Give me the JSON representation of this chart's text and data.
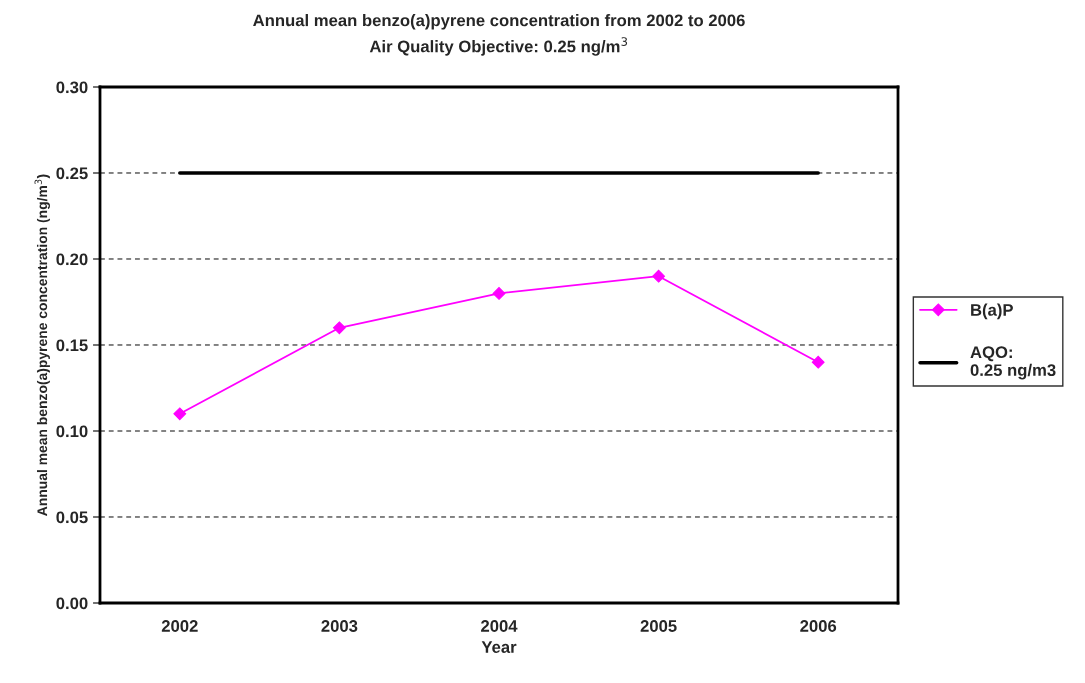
{
  "chart_data": {
    "type": "line",
    "title": "Annual mean benzo(a)pyrene concentration from 2002 to 2006\nAir Quality Objective: 0.25 ng/m$^{3}$",
    "xlabel": "Year",
    "ylabel": "Annual mean benzo(a)pyrene concentration (ng/m$^{3}$)",
    "categories": [
      "2002",
      "2003",
      "2004",
      "2005",
      "2006"
    ],
    "series": [
      {
        "name": "B(a)P",
        "color": "#ff00ff",
        "values": [
          0.11,
          0.16,
          0.18,
          0.19,
          0.14
        ],
        "marker": "diamond"
      },
      {
        "name": "AQO:\n0.25 ng/m3",
        "color": "#000000",
        "values": [
          0.25,
          0.25,
          0.25,
          0.25,
          0.25
        ],
        "marker": "none"
      }
    ],
    "ylim": [
      0,
      0.3
    ],
    "yticks": [
      {
        "value": 0,
        "label": "0.00"
      },
      {
        "value": 0.05,
        "label": "0.05"
      },
      {
        "value": 0.1,
        "label": "0.10"
      },
      {
        "value": 0.15,
        "label": "0.15"
      },
      {
        "value": 0.2,
        "label": "0.20"
      },
      {
        "value": 0.25,
        "label": "0.25"
      },
      {
        "value": 0.3,
        "label": "0.30"
      }
    ],
    "grid": "y",
    "legend": "right",
    "line_style": "solid"
  }
}
